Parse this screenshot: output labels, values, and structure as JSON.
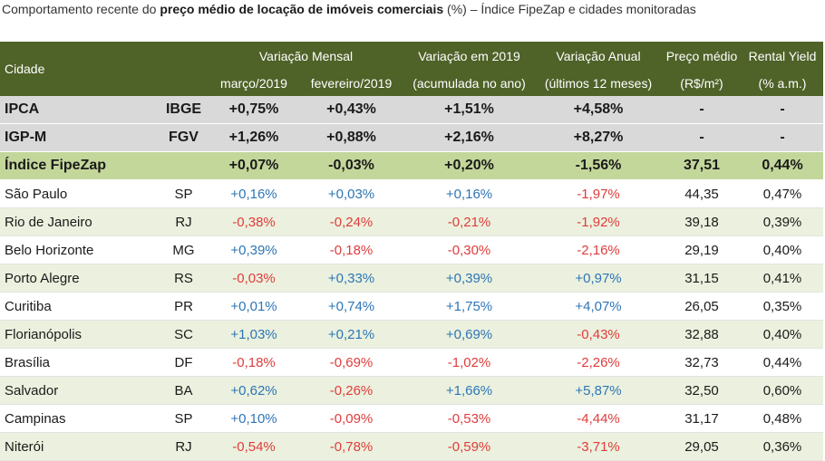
{
  "caption": {
    "prefix": "Comportamento recente do",
    "bold": "preço médio de locação de imóveis comerciais",
    "suffix": "(%) – Índice FipeZap e cidades monitoradas"
  },
  "header": {
    "city": "Cidade",
    "monthly_group": "Variação Mensal",
    "month_march": "março/2019",
    "month_feb": "fevereiro/2019",
    "ytd": "Variação em 2019",
    "ytd_sub": "(acumulada no ano)",
    "annual": "Variação Anual",
    "annual_sub": "(últimos 12 meses)",
    "price": "Preço médio",
    "price_sub": "(R$/m²)",
    "yield": "Rental Yield",
    "yield_sub": "(% a.m.)"
  },
  "benchmarks": [
    {
      "name": "IPCA",
      "code": "IBGE",
      "march": "+0,75%",
      "feb": "+0,43%",
      "ytd": "+1,51%",
      "annual": "+4,58%",
      "price": "-",
      "yield": "-"
    },
    {
      "name": "IGP-M",
      "code": "FGV",
      "march": "+1,26%",
      "feb": "+0,88%",
      "ytd": "+2,16%",
      "annual": "+8,27%",
      "price": "-",
      "yield": "-"
    }
  ],
  "index_row": {
    "name": "Índice FipeZap",
    "code": "",
    "march": "+0,07%",
    "feb": "-0,03%",
    "ytd": "+0,20%",
    "annual": "-1,56%",
    "price": "37,51",
    "yield": "0,44%"
  },
  "cities": [
    {
      "name": "São Paulo",
      "code": "SP",
      "march": "+0,16%",
      "feb": "+0,03%",
      "ytd": "+0,16%",
      "annual": "-1,97%",
      "price": "44,35",
      "yield": "0,47%"
    },
    {
      "name": "Rio de Janeiro",
      "code": "RJ",
      "march": "-0,38%",
      "feb": "-0,24%",
      "ytd": "-0,21%",
      "annual": "-1,92%",
      "price": "39,18",
      "yield": "0,39%"
    },
    {
      "name": "Belo Horizonte",
      "code": "MG",
      "march": "+0,39%",
      "feb": "-0,18%",
      "ytd": "-0,30%",
      "annual": "-2,16%",
      "price": "29,19",
      "yield": "0,40%"
    },
    {
      "name": "Porto Alegre",
      "code": "RS",
      "march": "-0,03%",
      "feb": "+0,33%",
      "ytd": "+0,39%",
      "annual": "+0,97%",
      "price": "31,15",
      "yield": "0,41%"
    },
    {
      "name": "Curitiba",
      "code": "PR",
      "march": "+0,01%",
      "feb": "+0,74%",
      "ytd": "+1,75%",
      "annual": "+4,07%",
      "price": "26,05",
      "yield": "0,35%"
    },
    {
      "name": "Florianópolis",
      "code": "SC",
      "march": "+1,03%",
      "feb": "+0,21%",
      "ytd": "+0,69%",
      "annual": "-0,43%",
      "price": "32,88",
      "yield": "0,40%"
    },
    {
      "name": "Brasília",
      "code": "DF",
      "march": "-0,18%",
      "feb": "-0,69%",
      "ytd": "-1,02%",
      "annual": "-2,26%",
      "price": "32,73",
      "yield": "0,44%"
    },
    {
      "name": "Salvador",
      "code": "BA",
      "march": "+0,62%",
      "feb": "-0,26%",
      "ytd": "+1,66%",
      "annual": "+5,87%",
      "price": "32,50",
      "yield": "0,60%"
    },
    {
      "name": "Campinas",
      "code": "SP",
      "march": "+0,10%",
      "feb": "-0,09%",
      "ytd": "-0,53%",
      "annual": "-4,44%",
      "price": "31,17",
      "yield": "0,48%"
    },
    {
      "name": "Niterói",
      "code": "RJ",
      "march": "-0,54%",
      "feb": "-0,78%",
      "ytd": "-0,59%",
      "annual": "-3,71%",
      "price": "29,05",
      "yield": "0,36%"
    }
  ],
  "colors": {
    "header_bg": "#4f6228",
    "benchmark_bg": "#d9d9d9",
    "index_bg": "#c4d79b",
    "alt_row_bg": "#ebf1de",
    "positive": "#2e75b6",
    "negative": "#e03c3c"
  }
}
